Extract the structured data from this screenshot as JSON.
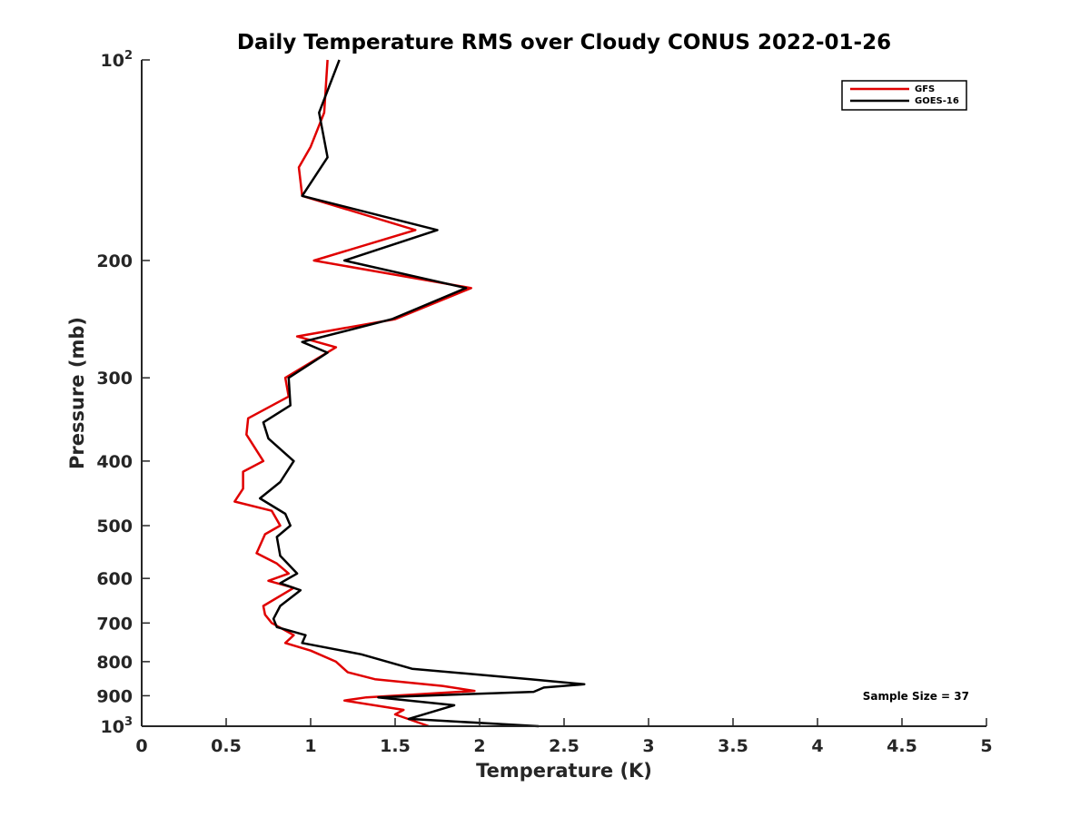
{
  "chart_data": {
    "type": "line",
    "title": "Daily Temperature RMS over Cloudy CONUS 2022-01-26",
    "xlabel": "Temperature (K)",
    "ylabel": "Pressure (mb)",
    "xlim": [
      0,
      5
    ],
    "ylim": [
      100,
      1000
    ],
    "y_scale": "log",
    "y_reversed": true,
    "x_ticks": [
      0,
      0.5,
      1,
      1.5,
      2,
      2.5,
      3,
      3.5,
      4,
      4.5,
      5
    ],
    "x_tick_labels": [
      "0",
      "0.5",
      "1",
      "1.5",
      "2",
      "2.5",
      "3",
      "3.5",
      "4",
      "4.5",
      "5"
    ],
    "y_ticks": [
      {
        "value": 100,
        "base": "10",
        "exp": "2"
      },
      {
        "value": 200,
        "label": "200"
      },
      {
        "value": 300,
        "label": "300"
      },
      {
        "value": 400,
        "label": "400"
      },
      {
        "value": 500,
        "label": "500"
      },
      {
        "value": 600,
        "label": "600"
      },
      {
        "value": 700,
        "label": "700"
      },
      {
        "value": 800,
        "label": "800"
      },
      {
        "value": 900,
        "label": "900"
      },
      {
        "value": 1000,
        "base": "10",
        "exp": "3"
      }
    ],
    "legend_position": "top-right",
    "annotation": "Sample Size = 37",
    "series": [
      {
        "name": "GFS",
        "color": "#e00000",
        "points": [
          [
            1.1,
            100
          ],
          [
            1.08,
            120
          ],
          [
            1.0,
            135
          ],
          [
            0.93,
            145
          ],
          [
            0.95,
            160
          ],
          [
            1.62,
            180
          ],
          [
            1.02,
            200
          ],
          [
            1.95,
            220
          ],
          [
            1.5,
            245
          ],
          [
            0.92,
            260
          ],
          [
            1.15,
            270
          ],
          [
            0.85,
            300
          ],
          [
            0.87,
            320
          ],
          [
            0.63,
            345
          ],
          [
            0.62,
            365
          ],
          [
            0.72,
            400
          ],
          [
            0.6,
            415
          ],
          [
            0.6,
            440
          ],
          [
            0.55,
            460
          ],
          [
            0.77,
            475
          ],
          [
            0.82,
            500
          ],
          [
            0.73,
            515
          ],
          [
            0.68,
            550
          ],
          [
            0.8,
            570
          ],
          [
            0.87,
            590
          ],
          [
            0.75,
            605
          ],
          [
            0.9,
            620
          ],
          [
            0.72,
            660
          ],
          [
            0.73,
            680
          ],
          [
            0.77,
            700
          ],
          [
            0.9,
            730
          ],
          [
            0.85,
            750
          ],
          [
            1.0,
            770
          ],
          [
            1.15,
            800
          ],
          [
            1.22,
            830
          ],
          [
            1.38,
            850
          ],
          [
            1.78,
            870
          ],
          [
            1.97,
            885
          ],
          [
            1.33,
            905
          ],
          [
            1.2,
            915
          ],
          [
            1.55,
            945
          ],
          [
            1.5,
            960
          ],
          [
            1.7,
            1000
          ]
        ]
      },
      {
        "name": "GOES-16",
        "color": "#000000",
        "points": [
          [
            1.17,
            100
          ],
          [
            1.05,
            120
          ],
          [
            1.1,
            140
          ],
          [
            0.95,
            160
          ],
          [
            1.75,
            180
          ],
          [
            1.2,
            200
          ],
          [
            1.92,
            220
          ],
          [
            1.48,
            245
          ],
          [
            0.95,
            265
          ],
          [
            1.1,
            275
          ],
          [
            0.87,
            300
          ],
          [
            0.88,
            330
          ],
          [
            0.72,
            350
          ],
          [
            0.75,
            370
          ],
          [
            0.9,
            400
          ],
          [
            0.82,
            430
          ],
          [
            0.7,
            455
          ],
          [
            0.85,
            480
          ],
          [
            0.88,
            500
          ],
          [
            0.8,
            520
          ],
          [
            0.82,
            555
          ],
          [
            0.92,
            590
          ],
          [
            0.82,
            610
          ],
          [
            0.94,
            625
          ],
          [
            0.82,
            660
          ],
          [
            0.78,
            690
          ],
          [
            0.8,
            710
          ],
          [
            0.97,
            730
          ],
          [
            0.95,
            750
          ],
          [
            1.3,
            780
          ],
          [
            1.6,
            820
          ],
          [
            2.3,
            850
          ],
          [
            2.62,
            865
          ],
          [
            2.38,
            875
          ],
          [
            2.32,
            888
          ],
          [
            1.4,
            905
          ],
          [
            1.85,
            930
          ],
          [
            1.58,
            975
          ],
          [
            2.35,
            1000
          ]
        ]
      }
    ]
  }
}
